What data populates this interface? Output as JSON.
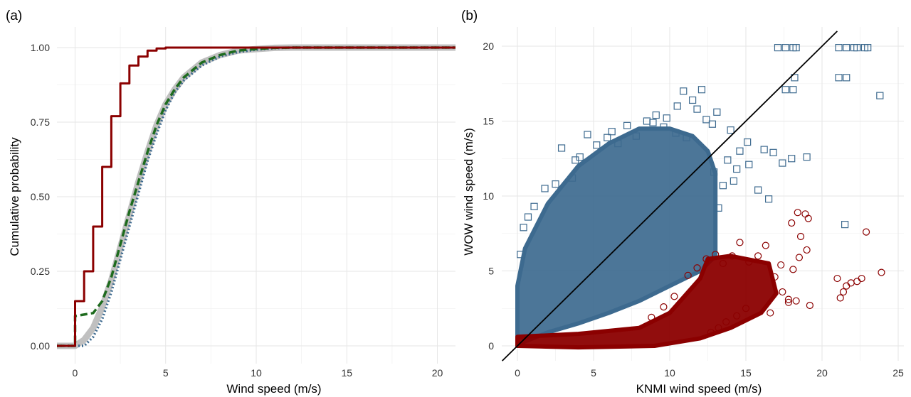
{
  "chart_data": [
    {
      "panel_label": "(a)",
      "type": "line",
      "xlabel": "Wind speed (m/s)",
      "ylabel": "Cumulative probability",
      "xlim": [
        -1,
        21
      ],
      "ylim": [
        0,
        1
      ],
      "x_ticks": [
        0,
        5,
        10,
        15,
        20
      ],
      "y_ticks": [
        "0.00",
        "0.25",
        "0.50",
        "0.75",
        "1.00"
      ],
      "grid": true,
      "series": [
        {
          "style": "thick-solid",
          "color": "#c0c0c0",
          "x": [
            -1,
            0,
            0.5,
            1,
            1.5,
            2,
            2.5,
            3,
            3.5,
            4,
            4.5,
            5,
            5.5,
            6,
            7,
            8,
            9,
            10,
            11,
            12,
            21
          ],
          "y": [
            0,
            0,
            0.02,
            0.06,
            0.13,
            0.22,
            0.33,
            0.44,
            0.55,
            0.65,
            0.74,
            0.81,
            0.86,
            0.9,
            0.95,
            0.975,
            0.99,
            0.995,
            0.999,
            1.0,
            1.0
          ]
        },
        {
          "style": "dotted",
          "color": "#3d6a8f",
          "x": [
            -1,
            0,
            0.5,
            1,
            1.5,
            2,
            2.5,
            3,
            3.5,
            4,
            4.5,
            5,
            5.5,
            6,
            7,
            8,
            9,
            10,
            11,
            12,
            21
          ],
          "y": [
            0,
            0,
            0.0,
            0.03,
            0.09,
            0.18,
            0.29,
            0.4,
            0.51,
            0.62,
            0.71,
            0.79,
            0.85,
            0.89,
            0.94,
            0.97,
            0.985,
            0.993,
            0.998,
            1.0,
            1.0
          ]
        },
        {
          "style": "dashed",
          "color": "#1e6b1e",
          "x": [
            -1,
            0,
            0,
            1,
            1.5,
            2,
            2.5,
            3,
            3.5,
            4,
            4.5,
            5,
            5.5,
            6,
            7,
            8,
            9,
            10,
            11,
            12,
            21
          ],
          "y": [
            0,
            0,
            0.1,
            0.11,
            0.15,
            0.23,
            0.34,
            0.45,
            0.55,
            0.65,
            0.74,
            0.81,
            0.86,
            0.9,
            0.95,
            0.975,
            0.99,
            0.995,
            0.999,
            1.0,
            1.0
          ]
        },
        {
          "style": "step",
          "color": "#8b0000",
          "x": [
            -1,
            0,
            0,
            0.5,
            0.5,
            1,
            1,
            1.5,
            1.5,
            2,
            2,
            2.5,
            2.5,
            3,
            3,
            3.5,
            3.5,
            4,
            4,
            4.5,
            4.5,
            5,
            5,
            21
          ],
          "y": [
            0,
            0,
            0.15,
            0.15,
            0.25,
            0.25,
            0.4,
            0.4,
            0.6,
            0.6,
            0.77,
            0.77,
            0.88,
            0.88,
            0.94,
            0.94,
            0.97,
            0.97,
            0.99,
            0.99,
            0.997,
            0.997,
            1.0,
            1.0
          ]
        }
      ]
    },
    {
      "panel_label": "(b)",
      "type": "scatter",
      "xlabel": "KNMI wind speed (m/s)",
      "ylabel": "WOW wind speed (m/s)",
      "xlim": [
        -1,
        25
      ],
      "ylim": [
        -1,
        21
      ],
      "x_ticks": [
        0,
        5,
        10,
        15,
        20,
        25
      ],
      "y_ticks": [
        0,
        5,
        10,
        15,
        20
      ],
      "grid": true,
      "reference_line": {
        "slope": 1,
        "intercept": 0,
        "color": "#000000"
      },
      "series": [
        {
          "marker": "open-square",
          "color": "#3d6a8f",
          "cloud_outline": [
            [
              0,
              0
            ],
            [
              0,
              4
            ],
            [
              0.5,
              6.5
            ],
            [
              2,
              9.5
            ],
            [
              4,
              12
            ],
            [
              6,
              13.5
            ],
            [
              8,
              14.5
            ],
            [
              10,
              14.5
            ],
            [
              11.5,
              14
            ],
            [
              12.5,
              13
            ],
            [
              13,
              11.5
            ],
            [
              13,
              9
            ],
            [
              13,
              6
            ],
            [
              12,
              5
            ],
            [
              10,
              4
            ],
            [
              8,
              3
            ],
            [
              6,
              2.2
            ],
            [
              4,
              1.5
            ],
            [
              2,
              0.9
            ],
            [
              0.5,
              0.3
            ]
          ],
          "x": [
            17.1,
            17.6,
            18.1,
            18.3,
            21.1,
            21.6,
            22.1,
            22.3,
            22.8,
            23.0,
            18.2,
            21.1,
            21.6,
            17.6,
            18.1,
            23.8,
            21.5,
            15.1,
            16.2,
            16.8,
            17.4,
            18.0,
            19.0,
            14.0,
            14.6,
            15.2,
            13.8,
            14.4,
            12.1,
            11.5,
            10.9,
            10.5,
            9.8,
            9.1,
            8.5,
            11.8,
            12.4,
            13.1,
            12.8,
            7.2,
            6.6,
            5.9,
            5.2,
            4.1,
            3.6,
            2.9,
            2.5,
            1.8,
            1.1,
            0.7,
            0.4,
            0.2,
            3.8,
            4.6,
            6.2,
            7.8,
            8.9,
            9.6,
            10.4,
            11.1,
            12.9,
            13.5,
            14.2,
            15.8,
            16.5,
            13.2
          ],
          "y": [
            19.9,
            19.9,
            19.9,
            19.9,
            19.9,
            19.9,
            19.9,
            19.9,
            19.9,
            19.9,
            17.9,
            17.9,
            17.9,
            17.1,
            17.1,
            16.7,
            8.1,
            13.6,
            13.1,
            12.9,
            12.2,
            12.5,
            12.6,
            14.4,
            13.0,
            12.1,
            12.4,
            11.8,
            17.1,
            16.4,
            17.0,
            16.0,
            15.2,
            15.4,
            15.0,
            15.8,
            15.1,
            15.6,
            14.8,
            14.7,
            13.5,
            13.9,
            13.4,
            12.6,
            11.2,
            13.2,
            10.8,
            10.5,
            9.3,
            8.6,
            7.9,
            6.1,
            12.4,
            14.1,
            14.3,
            14.0,
            14.9,
            14.6,
            14.2,
            13.9,
            11.6,
            10.7,
            11.0,
            10.4,
            9.8,
            9.2
          ]
        },
        {
          "marker": "open-circle",
          "color": "#8b0000",
          "cloud_outline": [
            [
              0,
              0
            ],
            [
              0,
              0.6
            ],
            [
              4,
              0.8
            ],
            [
              8,
              1.2
            ],
            [
              10,
              2.2
            ],
            [
              12,
              4.5
            ],
            [
              12.5,
              5.8
            ],
            [
              14,
              6.0
            ],
            [
              16.5,
              5.5
            ],
            [
              17,
              3.5
            ],
            [
              16,
              2.2
            ],
            [
              14,
              1.2
            ],
            [
              12,
              0.5
            ],
            [
              9,
              0
            ],
            [
              4,
              -0.1
            ]
          ],
          "x": [
            18.4,
            18.9,
            18.0,
            19.1,
            18.6,
            22.9,
            23.9,
            21.0,
            21.2,
            21.6,
            21.9,
            22.3,
            22.6,
            21.4,
            19.2,
            17.8,
            17.4,
            16.9,
            17.3,
            18.1,
            18.5,
            19.0,
            16.3,
            15.8,
            15.2,
            14.6,
            14.1,
            13.5,
            13.0,
            12.4,
            11.8,
            11.2,
            10.3,
            9.6,
            8.8,
            16.6,
            17.8,
            18.3,
            15.0,
            14.4,
            13.7,
            13.2,
            12.7
          ],
          "y": [
            8.9,
            8.8,
            8.2,
            8.5,
            7.3,
            7.6,
            4.9,
            4.5,
            3.2,
            4.0,
            4.2,
            4.3,
            4.5,
            3.6,
            2.7,
            3.1,
            3.6,
            4.6,
            5.4,
            5.1,
            5.9,
            6.4,
            6.7,
            6.0,
            5.6,
            6.9,
            6.0,
            5.5,
            6.1,
            5.8,
            5.2,
            4.7,
            3.3,
            2.6,
            1.9,
            2.2,
            2.9,
            3.0,
            2.5,
            2.0,
            1.6,
            1.2,
            0.9
          ]
        }
      ]
    }
  ]
}
